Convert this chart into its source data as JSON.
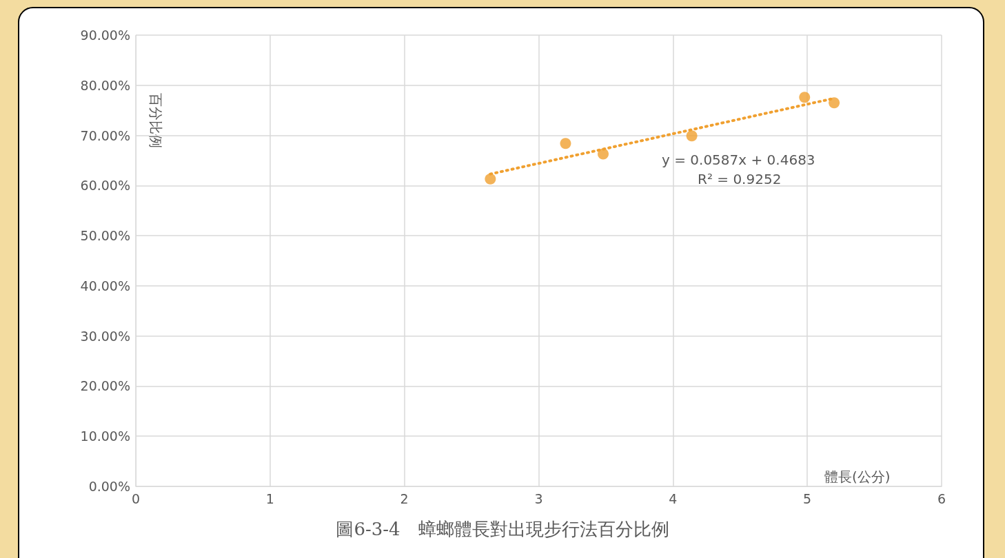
{
  "chart_data": {
    "type": "scatter",
    "title": "圖6-3-4　蟑螂體長對出現步行法百分比例",
    "xlabel": "體長(公分)",
    "ylabel": "百分比例",
    "annotations": [
      "y = 0.0587x + 0.4683",
      "R² = 0.9252"
    ],
    "series": [
      {
        "color": "#f0a030",
        "marker": "circle",
        "x": [
          2.64,
          3.2,
          3.48,
          4.14,
          4.98,
          5.2
        ],
        "values": [
          0.613,
          0.684,
          0.663,
          0.699,
          0.776,
          0.765
        ]
      },
      {
        "type": "line",
        "color": "#f0a030",
        "marker": "none",
        "line_style": "dotted",
        "x": [
          2.64,
          5.2
        ],
        "values": [
          0.623,
          0.774
        ]
      }
    ],
    "xlim": [
      0,
      6
    ],
    "xticks": [
      0,
      1,
      2,
      3,
      4,
      5,
      6
    ],
    "ylim": [
      0,
      0.9
    ],
    "yticks": [
      {
        "value": 0,
        "label": "0.00%"
      },
      {
        "value": 0.1,
        "label": "10.00%"
      },
      {
        "value": 0.2,
        "label": "20.00%"
      },
      {
        "value": 0.3,
        "label": "30.00%"
      },
      {
        "value": 0.4,
        "label": "40.00%"
      },
      {
        "value": 0.5,
        "label": "50.00%"
      },
      {
        "value": 0.6,
        "label": "60.00%"
      },
      {
        "value": 0.7,
        "label": "70.00%"
      },
      {
        "value": 0.8,
        "label": "80.00%"
      },
      {
        "value": 0.9,
        "label": "90.00%"
      }
    ],
    "grid": true
  }
}
